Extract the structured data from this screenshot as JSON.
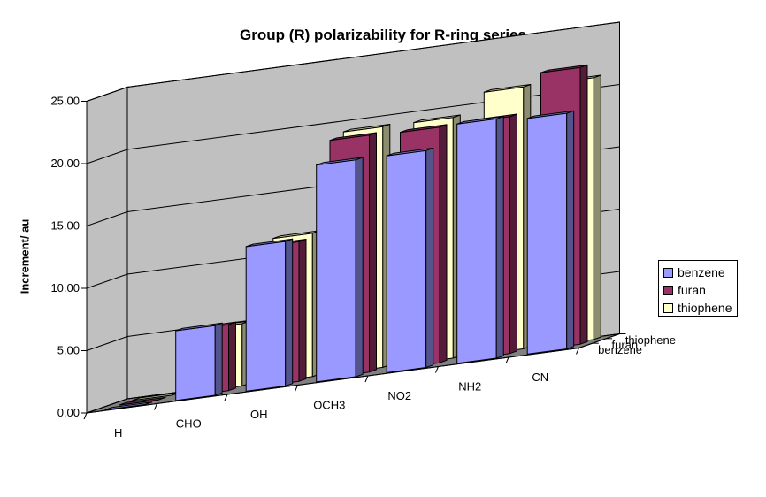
{
  "chart_data": {
    "type": "bar",
    "variant": "3d-column",
    "title": "Group (R) polarizability for R-ring series",
    "ylabel": "Increment/ au",
    "xlabel": "",
    "categories": [
      "H",
      "CHO",
      "OH",
      "OCH3",
      "NO2",
      "NH2",
      "CN"
    ],
    "depth_labels": [
      "benzene",
      "furan",
      "thiophene"
    ],
    "yticks": [
      "0.00",
      "5.00",
      "10.00",
      "15.00",
      "20.00",
      "25.00"
    ],
    "ylim": [
      0,
      25
    ],
    "grid": true,
    "legend_position": "right",
    "series": [
      {
        "name": "benzene",
        "color": "#9999ff",
        "values": [
          0.0,
          5.6,
          11.6,
          17.4,
          17.4,
          19.2,
          18.9
        ]
      },
      {
        "name": "furan",
        "color": "#993366",
        "values": [
          0.0,
          5.3,
          11.2,
          19.0,
          18.9,
          19.0,
          22.2
        ]
      },
      {
        "name": "thiophene",
        "color": "#ffffcc",
        "values": [
          0.0,
          5.0,
          11.5,
          19.3,
          19.3,
          21.0,
          21.0
        ]
      }
    ]
  }
}
